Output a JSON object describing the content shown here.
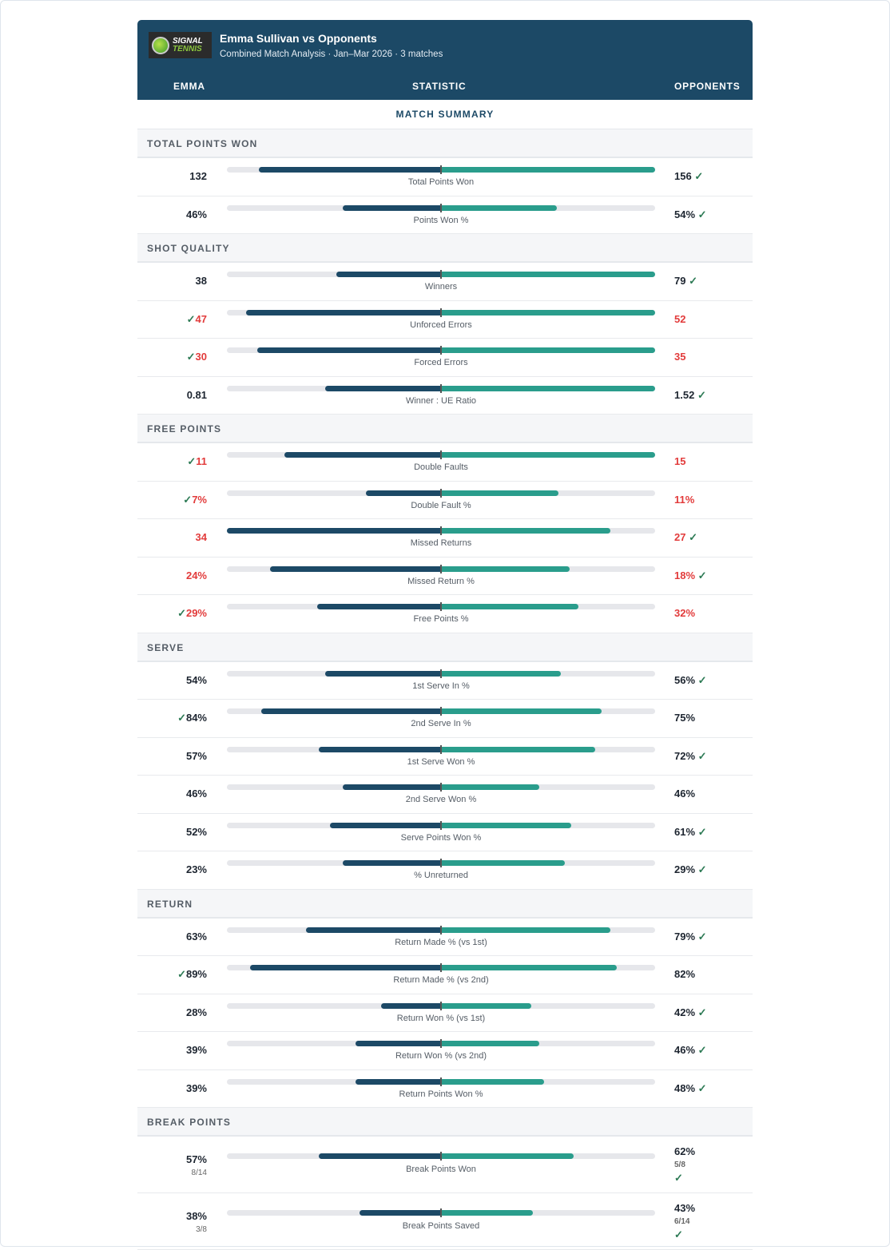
{
  "header": {
    "logo_text": [
      "SIGNAL",
      "TENNIS"
    ],
    "title": "Emma Sullivan vs Opponents",
    "subtitle": "Combined Match Analysis · Jan–Mar 2026 · 3 matches"
  },
  "columns": {
    "left": "EMMA",
    "mid": "STATISTIC",
    "right": "OPPONENTS"
  },
  "summary_label": "MATCH SUMMARY",
  "colors": {
    "emma": "#1c4966",
    "opponents": "#2a9d8c",
    "bad": "#e23b3b",
    "check": "#2c7a54"
  },
  "sections": [
    {
      "title": "TOTAL POINTS WON",
      "rows": [
        {
          "label": "Total Points Won",
          "emma": "132",
          "opp": "156",
          "winner": "opp",
          "bad": false,
          "emma_fill": 0.85,
          "opp_fill": 1.0
        },
        {
          "label": "Points Won %",
          "emma": "46%",
          "opp": "54%",
          "winner": "opp",
          "bad": false,
          "emma_fill": 0.46,
          "opp_fill": 0.54
        }
      ]
    },
    {
      "title": "SHOT QUALITY",
      "rows": [
        {
          "label": "Winners",
          "emma": "38",
          "opp": "79",
          "winner": "opp",
          "bad": false,
          "emma_fill": 0.49,
          "opp_fill": 1.0
        },
        {
          "label": "Unforced Errors",
          "emma": "47",
          "opp": "52",
          "winner": "emma",
          "bad": true,
          "emma_fill": 0.91,
          "opp_fill": 1.0
        },
        {
          "label": "Forced Errors",
          "emma": "30",
          "opp": "35",
          "winner": "emma",
          "bad": true,
          "emma_fill": 0.86,
          "opp_fill": 1.0
        },
        {
          "label": "Winner : UE Ratio",
          "emma": "0.81",
          "opp": "1.52",
          "winner": "opp",
          "bad": false,
          "emma_fill": 0.54,
          "opp_fill": 1.0
        }
      ]
    },
    {
      "title": "FREE POINTS",
      "rows": [
        {
          "label": "Double Faults",
          "emma": "11",
          "opp": "15",
          "winner": "emma",
          "bad": true,
          "emma_fill": 0.73,
          "opp_fill": 1.0
        },
        {
          "label": "Double Fault %",
          "emma": "7%",
          "opp": "11%",
          "winner": "emma",
          "bad": true,
          "emma_fill": 0.35,
          "opp_fill": 0.55
        },
        {
          "label": "Missed Returns",
          "emma": "34",
          "opp": "27",
          "winner": "opp",
          "bad": true,
          "emma_fill": 1.0,
          "opp_fill": 0.79
        },
        {
          "label": "Missed Return %",
          "emma": "24%",
          "opp": "18%",
          "winner": "opp",
          "bad": true,
          "emma_fill": 0.8,
          "opp_fill": 0.6
        },
        {
          "label": "Free Points %",
          "emma": "29%",
          "opp": "32%",
          "winner": "emma",
          "bad": true,
          "emma_fill": 0.58,
          "opp_fill": 0.64
        }
      ]
    },
    {
      "title": "SERVE",
      "rows": [
        {
          "label": "1st Serve In %",
          "emma": "54%",
          "opp": "56%",
          "winner": "opp",
          "bad": false,
          "emma_fill": 0.54,
          "opp_fill": 0.56
        },
        {
          "label": "2nd Serve In %",
          "emma": "84%",
          "opp": "75%",
          "winner": "emma",
          "bad": false,
          "emma_fill": 0.84,
          "opp_fill": 0.75
        },
        {
          "label": "1st Serve Won %",
          "emma": "57%",
          "opp": "72%",
          "winner": "opp",
          "bad": false,
          "emma_fill": 0.57,
          "opp_fill": 0.72
        },
        {
          "label": "2nd Serve Won %",
          "emma": "46%",
          "opp": "46%",
          "winner": "",
          "bad": false,
          "emma_fill": 0.46,
          "opp_fill": 0.46
        },
        {
          "label": "Serve Points Won %",
          "emma": "52%",
          "opp": "61%",
          "winner": "opp",
          "bad": false,
          "emma_fill": 0.52,
          "opp_fill": 0.61
        },
        {
          "label": "% Unreturned",
          "emma": "23%",
          "opp": "29%",
          "winner": "opp",
          "bad": false,
          "emma_fill": 0.46,
          "opp_fill": 0.58
        }
      ]
    },
    {
      "title": "RETURN",
      "rows": [
        {
          "label": "Return Made % (vs 1st)",
          "emma": "63%",
          "opp": "79%",
          "winner": "opp",
          "bad": false,
          "emma_fill": 0.63,
          "opp_fill": 0.79
        },
        {
          "label": "Return Made % (vs 2nd)",
          "emma": "89%",
          "opp": "82%",
          "winner": "emma",
          "bad": false,
          "emma_fill": 0.89,
          "opp_fill": 0.82
        },
        {
          "label": "Return Won % (vs 1st)",
          "emma": "28%",
          "opp": "42%",
          "winner": "opp",
          "bad": false,
          "emma_fill": 0.28,
          "opp_fill": 0.42
        },
        {
          "label": "Return Won % (vs 2nd)",
          "emma": "39%",
          "opp": "46%",
          "winner": "opp",
          "bad": false,
          "emma_fill": 0.4,
          "opp_fill": 0.46
        },
        {
          "label": "Return Points Won %",
          "emma": "39%",
          "opp": "48%",
          "winner": "opp",
          "bad": false,
          "emma_fill": 0.4,
          "opp_fill": 0.48
        }
      ]
    },
    {
      "title": "BREAK POINTS",
      "rows": [
        {
          "label": "Break Points Won",
          "emma": "57%",
          "emma_frac": "8/14",
          "opp": "62%",
          "opp_frac": "5/8",
          "winner": "opp",
          "bad": false,
          "emma_fill": 0.57,
          "opp_fill": 0.62
        },
        {
          "label": "Break Points Saved",
          "emma": "38%",
          "emma_frac": "3/8",
          "opp": "43%",
          "opp_frac": "6/14",
          "winner": "opp",
          "bad": false,
          "emma_fill": 0.38,
          "opp_fill": 0.43
        }
      ]
    }
  ]
}
